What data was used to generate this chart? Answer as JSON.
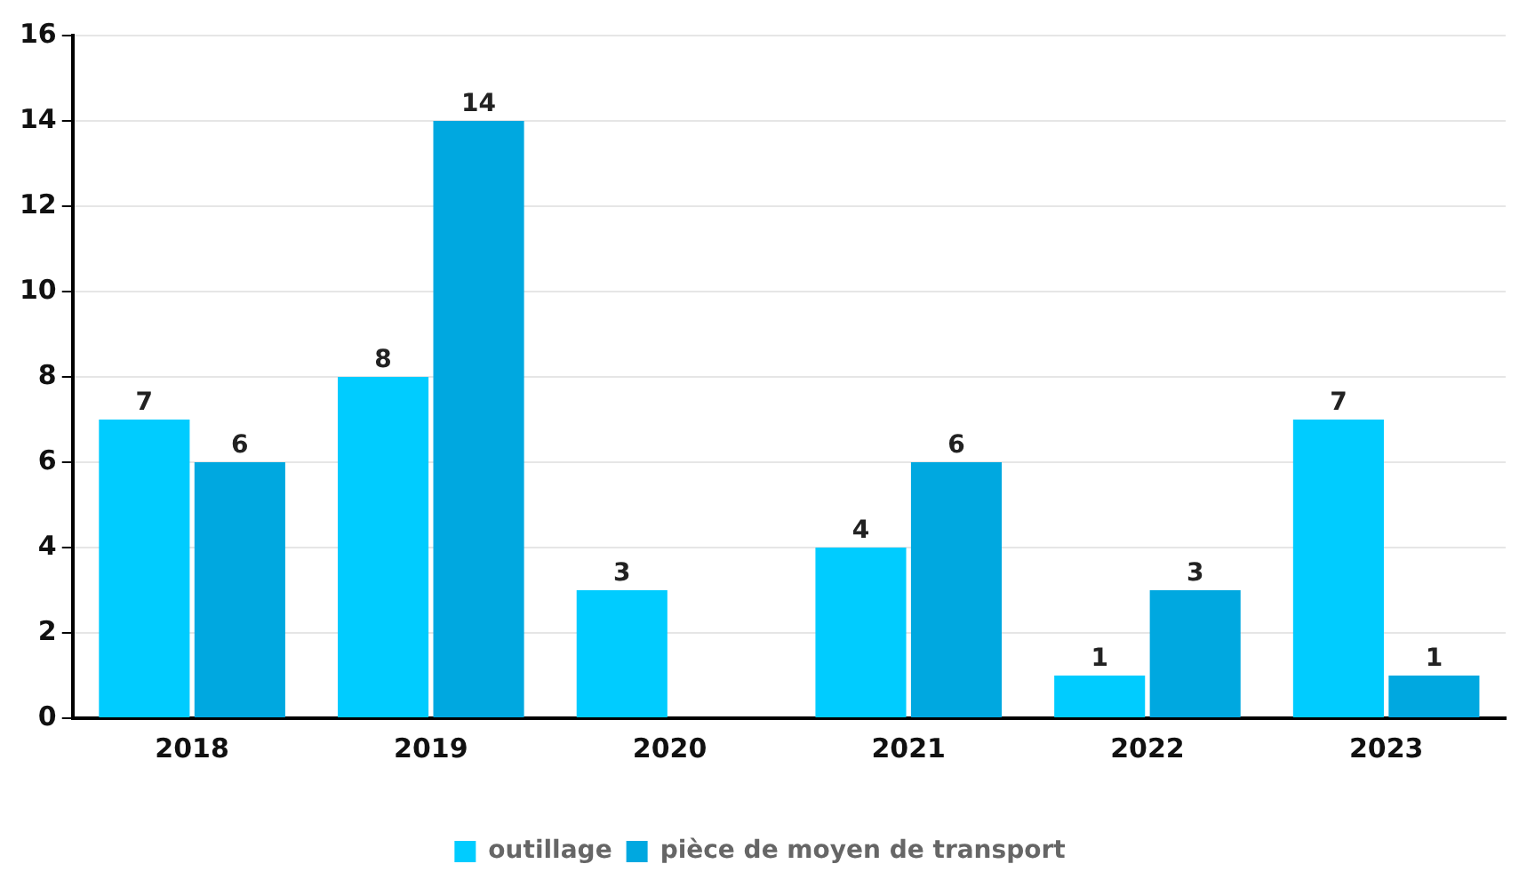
{
  "chart_data": {
    "type": "bar",
    "categories": [
      "2018",
      "2019",
      "2020",
      "2021",
      "2022",
      "2023"
    ],
    "series": [
      {
        "name": "outillage",
        "color": "#00ccff",
        "values": [
          7,
          8,
          3,
          4,
          1,
          7
        ]
      },
      {
        "name": "pièce de moyen de transport",
        "color": "#00a8e0",
        "values": [
          6,
          14,
          null,
          6,
          3,
          1
        ]
      }
    ],
    "ylim": [
      0,
      16
    ],
    "yticks": [
      0,
      2,
      4,
      6,
      8,
      10,
      12,
      14,
      16
    ],
    "grid": "y",
    "legend": "bottom",
    "data_labels": true
  }
}
